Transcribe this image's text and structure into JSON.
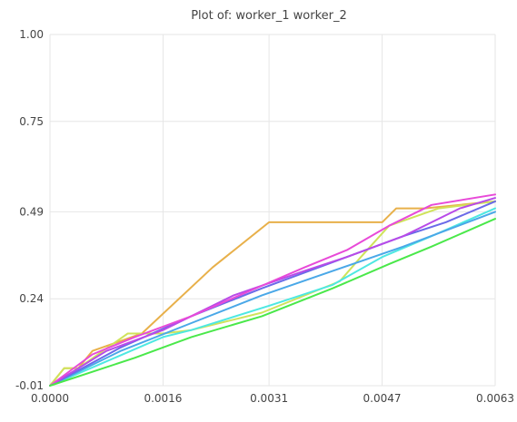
{
  "chart_data": {
    "type": "line",
    "title": "Plot of: worker_1 worker_2",
    "xlabel": "",
    "ylabel": "",
    "xlim": [
      0,
      0.0063
    ],
    "ylim": [
      -0.01,
      1.0
    ],
    "x_ticks": [
      "0.0000",
      "0.0016",
      "0.0031",
      "0.0047",
      "0.0063"
    ],
    "x_tick_values": [
      0,
      0.0016,
      0.0031,
      0.0047,
      0.0063
    ],
    "y_ticks": [
      "-0.01",
      "0.24",
      "0.49",
      "0.75",
      "1.00"
    ],
    "y_tick_values": [
      -0.01,
      0.24,
      0.49,
      0.75,
      1.0
    ],
    "grid": true,
    "series": [
      {
        "color": "#e8b04a",
        "x": [
          0,
          0.0002,
          0.0004,
          0.0006,
          0.0013,
          0.0023,
          0.0031,
          0.0047,
          0.0049,
          0.0053,
          0.0063
        ],
        "y": [
          -0.01,
          0.04,
          0.04,
          0.09,
          0.14,
          0.33,
          0.46,
          0.46,
          0.5,
          0.5,
          0.52
        ]
      },
      {
        "color": "#cfe35a",
        "x": [
          0,
          0.0002,
          0.0004,
          0.0011,
          0.0016,
          0.002,
          0.003,
          0.0041,
          0.0044,
          0.0048,
          0.0055,
          0.0063
        ],
        "y": [
          -0.01,
          0.04,
          0.04,
          0.14,
          0.14,
          0.15,
          0.2,
          0.29,
          0.36,
          0.45,
          0.5,
          0.52
        ]
      },
      {
        "color": "#4ee8e2",
        "x": [
          0,
          0.0008,
          0.0016,
          0.002,
          0.0031,
          0.004,
          0.0047,
          0.0054,
          0.0063
        ],
        "y": [
          -0.01,
          0.06,
          0.13,
          0.15,
          0.22,
          0.28,
          0.36,
          0.42,
          0.5
        ]
      },
      {
        "color": "#4aa8e8",
        "x": [
          0,
          0.001,
          0.002,
          0.003,
          0.004,
          0.005,
          0.0063
        ],
        "y": [
          -0.01,
          0.09,
          0.17,
          0.25,
          0.32,
          0.39,
          0.49
        ]
      },
      {
        "color": "#6a6ae8",
        "x": [
          0,
          0.001,
          0.002,
          0.003,
          0.0038,
          0.0046,
          0.005,
          0.0056,
          0.0063
        ],
        "y": [
          -0.01,
          0.1,
          0.19,
          0.27,
          0.33,
          0.39,
          0.42,
          0.46,
          0.52
        ]
      },
      {
        "color": "#b84ae8",
        "x": [
          0,
          0.0008,
          0.0016,
          0.0026,
          0.0036,
          0.0042,
          0.005,
          0.0058,
          0.0063
        ],
        "y": [
          -0.01,
          0.09,
          0.15,
          0.25,
          0.32,
          0.36,
          0.42,
          0.5,
          0.53
        ]
      },
      {
        "color": "#e84ad8",
        "x": [
          0,
          0.0006,
          0.0012,
          0.002,
          0.0028,
          0.0036,
          0.0042,
          0.0048,
          0.0054,
          0.0063
        ],
        "y": [
          -0.01,
          0.08,
          0.13,
          0.19,
          0.26,
          0.33,
          0.38,
          0.45,
          0.51,
          0.54
        ]
      },
      {
        "color": "#4ae84a",
        "x": [
          0,
          0.0006,
          0.0012,
          0.002,
          0.003,
          0.004,
          0.0048,
          0.0054,
          0.0063
        ],
        "y": [
          -0.01,
          0.03,
          0.07,
          0.13,
          0.19,
          0.27,
          0.34,
          0.39,
          0.47
        ]
      }
    ]
  }
}
